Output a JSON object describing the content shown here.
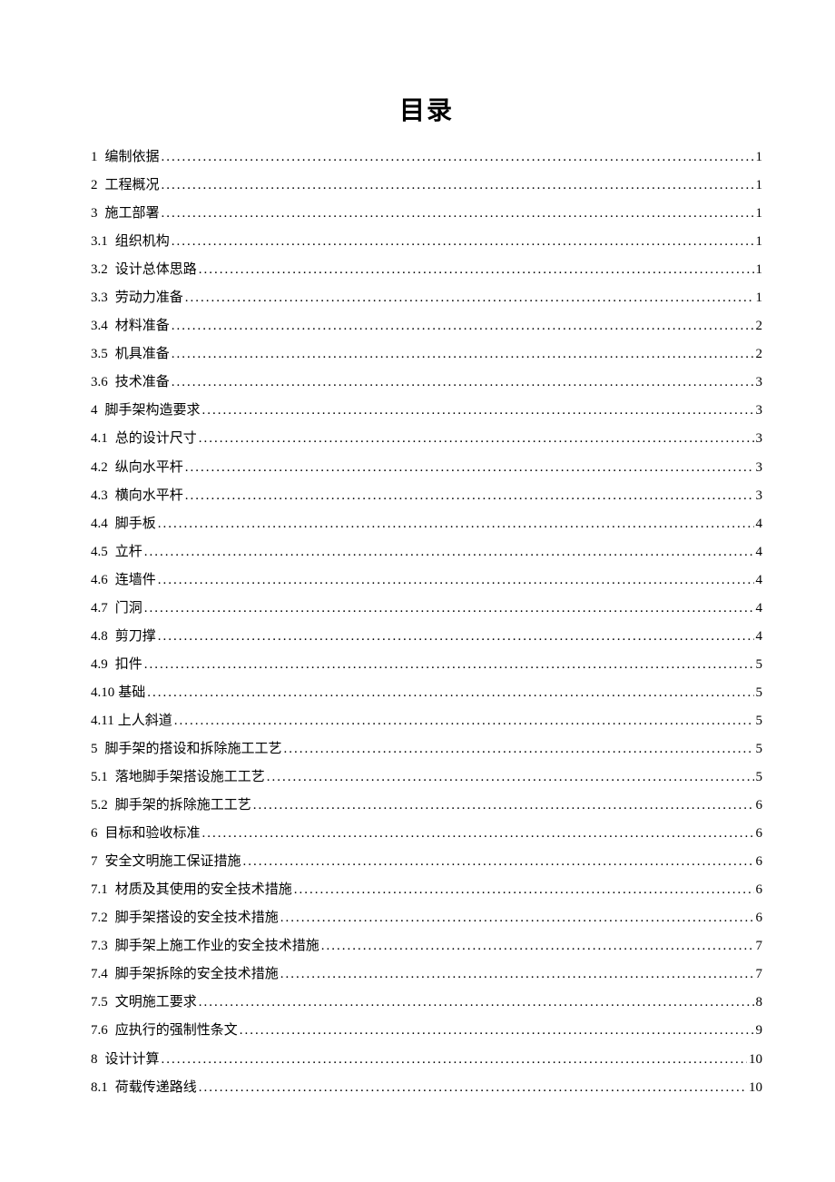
{
  "title": "目录",
  "entries": [
    {
      "number": "1",
      "text": "编制依据",
      "page": "1",
      "indent": 0
    },
    {
      "number": "2",
      "text": "工程概况",
      "page": "1",
      "indent": 0
    },
    {
      "number": "3",
      "text": "施工部署",
      "page": "1",
      "indent": 0
    },
    {
      "number": "3.1",
      "text": "组织机构",
      "page": "1",
      "indent": 0
    },
    {
      "number": "3.2",
      "text": "设计总体思路",
      "page": "1",
      "indent": 0
    },
    {
      "number": "3.3",
      "text": "劳动力准备",
      "page": "1",
      "indent": 0
    },
    {
      "number": "3.4",
      "text": "材料准备",
      "page": "2",
      "indent": 0
    },
    {
      "number": "3.5",
      "text": "机具准备",
      "page": "2",
      "indent": 0
    },
    {
      "number": "3.6",
      "text": "技术准备",
      "page": "3",
      "indent": 0
    },
    {
      "number": "4",
      "text": "脚手架构造要求",
      "page": "3",
      "indent": 0
    },
    {
      "number": "4.1",
      "text": "总的设计尺寸",
      "page": "3",
      "indent": 0
    },
    {
      "number": "4.2",
      "text": "纵向水平杆",
      "page": "3",
      "indent": 0
    },
    {
      "number": "4.3",
      "text": "横向水平杆",
      "page": "3",
      "indent": 0
    },
    {
      "number": "4.4",
      "text": "脚手板",
      "page": "4",
      "indent": 0
    },
    {
      "number": "4.5",
      "text": "立杆",
      "page": "4",
      "indent": 0
    },
    {
      "number": "4.6",
      "text": "连墙件",
      "page": "4",
      "indent": 0
    },
    {
      "number": "4.7",
      "text": "门洞",
      "page": "4",
      "indent": 0
    },
    {
      "number": "4.8",
      "text": "剪刀撑",
      "page": "4",
      "indent": 0
    },
    {
      "number": "4.9",
      "text": "扣件",
      "page": "5",
      "indent": 0
    },
    {
      "number": "4.10",
      "text": "基础",
      "page": "5",
      "indent": 0,
      "nospace": true
    },
    {
      "number": "4.11",
      "text": "上人斜道",
      "page": "5",
      "indent": 0,
      "nospace": true
    },
    {
      "number": "5",
      "text": "脚手架的搭设和拆除施工工艺",
      "page": "5",
      "indent": 0
    },
    {
      "number": "5.1",
      "text": "落地脚手架搭设施工工艺",
      "page": "5",
      "indent": 0
    },
    {
      "number": "5.2",
      "text": "脚手架的拆除施工工艺",
      "page": "6",
      "indent": 0
    },
    {
      "number": "6",
      "text": "目标和验收标准",
      "page": "6",
      "indent": 0
    },
    {
      "number": "7",
      "text": "安全文明施工保证措施",
      "page": "6",
      "indent": 0
    },
    {
      "number": "7.1",
      "text": "材质及其使用的安全技术措施",
      "page": "6",
      "indent": 0
    },
    {
      "number": "7.2",
      "text": "脚手架搭设的安全技术措施",
      "page": "6",
      "indent": 0
    },
    {
      "number": "7.3",
      "text": "脚手架上施工作业的安全技术措施",
      "page": "7",
      "indent": 0
    },
    {
      "number": "7.4",
      "text": "脚手架拆除的安全技术措施",
      "page": "7",
      "indent": 0
    },
    {
      "number": "7.5",
      "text": "文明施工要求",
      "page": "8",
      "indent": 0
    },
    {
      "number": "7.6",
      "text": "应执行的强制性条文",
      "page": "9",
      "indent": 0
    },
    {
      "number": "8",
      "text": "设计计算",
      "page": "10",
      "indent": 0
    },
    {
      "number": "8.1",
      "text": "荷载传递路线",
      "page": "10",
      "indent": 0
    }
  ]
}
